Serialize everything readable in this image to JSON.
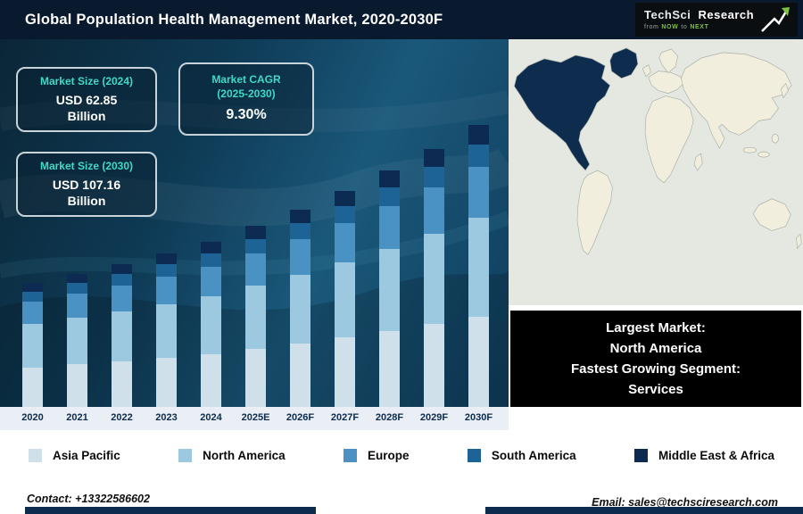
{
  "header": {
    "title": "Global Population Health Management Market, 2020-2030F",
    "logo": {
      "brand1": "TechSci",
      "brand2": "Research",
      "tagline_from": "from",
      "tagline_now": "NOW",
      "tagline_to": "to",
      "tagline_next": "NEXT"
    }
  },
  "stat_boxes": [
    {
      "label": "Market Size (2024)",
      "value": "USD 62.85",
      "unit": "Billion"
    },
    {
      "label": "Market CAGR",
      "label2": "(2025-2030)",
      "value": "9.30%"
    },
    {
      "label": "Market Size (2030)",
      "value": "USD 107.16",
      "unit": "Billion"
    }
  ],
  "chart_data": {
    "type": "bar",
    "stacked": true,
    "title": "Global Population Health Management Market, 2020-2030F",
    "categories": [
      "2020",
      "2021",
      "2022",
      "2023",
      "2024",
      "2025E",
      "2026F",
      "2027F",
      "2028F",
      "2029F",
      "2030F"
    ],
    "series": [
      {
        "name": "Asia Pacific",
        "color": "#cfe0ea",
        "values": [
          15.0,
          16.2,
          17.4,
          18.7,
          20.1,
          22.0,
          24.0,
          26.3,
          28.7,
          31.4,
          34.3
        ]
      },
      {
        "name": "North America",
        "color": "#9cc8e0",
        "values": [
          16.5,
          17.7,
          19.0,
          20.4,
          22.0,
          24.0,
          26.3,
          28.7,
          31.4,
          34.3,
          37.5
        ]
      },
      {
        "name": "Europe",
        "color": "#4a92c3",
        "values": [
          8.5,
          9.1,
          9.8,
          10.5,
          11.3,
          12.4,
          13.5,
          14.8,
          16.2,
          17.7,
          19.3
        ]
      },
      {
        "name": "South America",
        "color": "#1d6396",
        "values": [
          3.8,
          4.0,
          4.3,
          4.7,
          5.0,
          5.5,
          6.0,
          6.6,
          7.2,
          7.8,
          8.6
        ]
      },
      {
        "name": "Middle East & Africa",
        "color": "#0d2b52",
        "values": [
          3.2,
          3.5,
          3.8,
          4.1,
          4.45,
          4.8,
          5.3,
          5.7,
          6.3,
          6.9,
          7.46
        ]
      }
    ],
    "totals": [
      47.0,
      50.5,
      54.3,
      58.4,
      62.85,
      68.7,
      75.1,
      82.1,
      89.8,
      98.1,
      107.16
    ],
    "ylim": [
      0,
      110
    ],
    "grid": false,
    "value_axis_visible": false,
    "legend_position": "bottom"
  },
  "map": {
    "highlighted_region": "North America",
    "highlight_color": "#0e2c4e",
    "land_color": "#f1eedd",
    "ocean_color": "#e4e8e0"
  },
  "highlight_box": {
    "lines": [
      "Largest Market:",
      "North America",
      "Fastest Growing Segment:",
      "Services"
    ]
  },
  "footer": {
    "contact": "Contact: +13322586602",
    "email": "Email: sales@techsciresearch.com"
  },
  "colors": {
    "accent_cyan": "#3fd9c6",
    "navy": "#0d2b4d",
    "brand_green": "#7dc242"
  }
}
